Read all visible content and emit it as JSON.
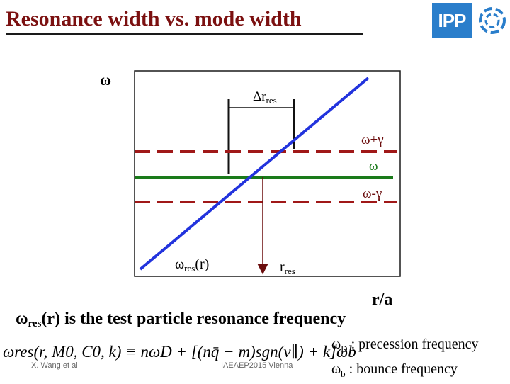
{
  "slide": {
    "title": "Resonance width vs. mode width",
    "logo_text": "IPP",
    "footer_author": "X. Wang et al",
    "footer_conference": "IAEAEP2015 Vienna"
  },
  "diagram": {
    "y_axis_label": "ω",
    "delta_r_main": "Δr",
    "delta_r_sub": "res",
    "line_omega_plus_gamma": "ω+γ",
    "line_omega": "ω",
    "line_omega_minus_gamma": "ω-γ",
    "omega_res_main": "ω",
    "omega_res_sub": "res",
    "omega_res_arg": "(r)",
    "r_res_main": "r",
    "r_res_sub": "res",
    "x_axis_label": "r/a",
    "colors": {
      "resonance_line": "#2233dd",
      "omega_line": "#1a7a1a",
      "gamma_lines": "#a01818",
      "arrow": "#6b0d0d"
    }
  },
  "caption": {
    "main": "ω",
    "sub": "res",
    "rest": "(r) is the test particle resonance frequency"
  },
  "formula": {
    "text": "ωres(r, M0, C0, k) ≡ nωD + [(nq̄ − m)sgn(v∥) + k]ωb"
  },
  "definitions": {
    "d_sym": "ω",
    "d_sub": "D",
    "d_text": " : precession frequency",
    "b_sym": "ω",
    "b_sub": "b",
    "b_text": " : bounce frequency"
  }
}
